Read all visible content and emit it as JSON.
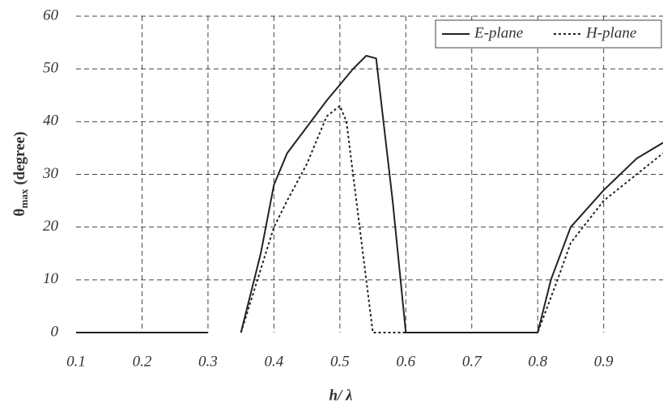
{
  "chart_data": {
    "type": "line",
    "xlabel": "h/ λ",
    "ylabel_symbol": "θ",
    "ylabel_subscript": "max",
    "ylabel_unit": "(degree)",
    "xlim": [
      0.1,
      0.99
    ],
    "ylim": [
      0,
      60
    ],
    "xticks": [
      0.1,
      0.2,
      0.3,
      0.4,
      0.5,
      0.6,
      0.7,
      0.8,
      0.9
    ],
    "yticks": [
      0,
      10,
      20,
      30,
      40,
      50,
      60
    ],
    "grid": true,
    "legend": "upper right",
    "series": [
      {
        "name": "E-plane",
        "color": "#222222",
        "dash": "solid",
        "x": [
          0.1,
          0.2,
          0.3,
          0.33,
          0.35,
          0.38,
          0.4,
          0.42,
          0.45,
          0.48,
          0.5,
          0.52,
          0.54,
          0.555,
          0.58,
          0.6,
          0.65,
          0.7,
          0.75,
          0.8,
          0.82,
          0.85,
          0.9,
          0.95,
          0.99
        ],
        "values": [
          0,
          0,
          0,
          null,
          0,
          15,
          28,
          34,
          39,
          44,
          47,
          50,
          52.5,
          52,
          25,
          0,
          0,
          0,
          0,
          0,
          10,
          20,
          27,
          33,
          36
        ]
      },
      {
        "name": "H-plane",
        "color": "#222222",
        "dash": "dotted",
        "x": [
          0.35,
          0.38,
          0.4,
          0.42,
          0.45,
          0.48,
          0.5,
          0.51,
          0.53,
          0.55,
          0.6,
          0.8,
          0.83,
          0.85,
          0.9,
          0.95,
          0.99
        ],
        "values": [
          0,
          12,
          20,
          25,
          32,
          41,
          43,
          40,
          20,
          0,
          0,
          0,
          10,
          17,
          25,
          30,
          34
        ]
      }
    ]
  }
}
